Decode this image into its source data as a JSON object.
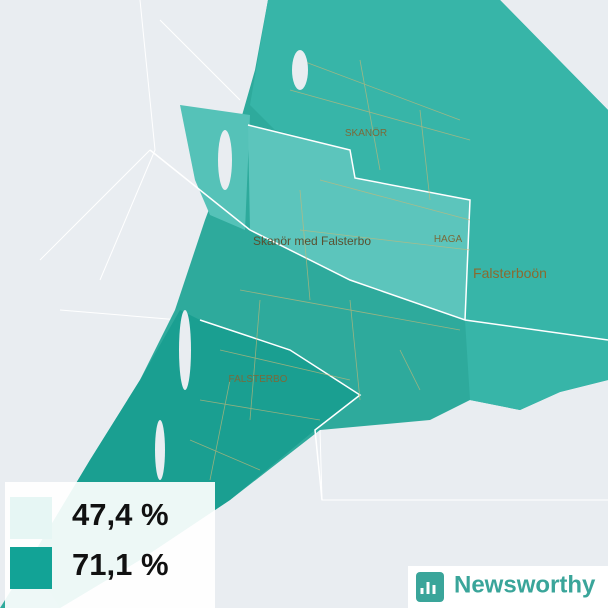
{
  "map": {
    "labels": [
      "SKANÖR",
      "HAGA",
      "Skanör med Falsterbo",
      "Falsterboön",
      "FALSTERBO"
    ]
  },
  "legend": {
    "items": [
      {
        "value": 47.4,
        "label": "47,4 %",
        "color": "#e6f6f4"
      },
      {
        "value": 71.1,
        "label": "71,1 %",
        "color": "#12a396"
      }
    ]
  },
  "logo": {
    "text": "Newsworthy"
  }
}
